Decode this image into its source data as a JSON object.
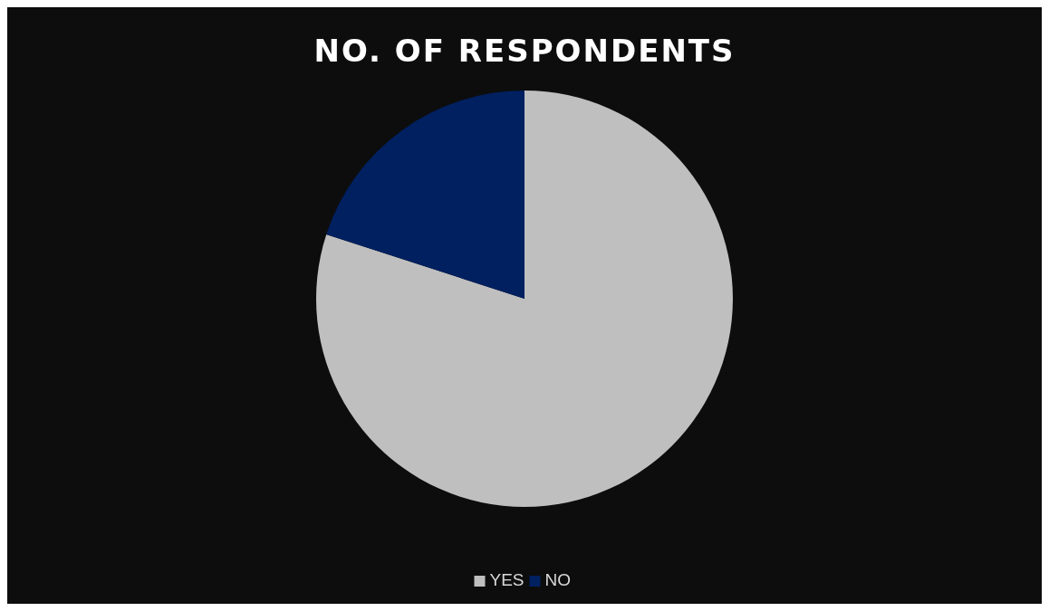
{
  "chart_data": {
    "type": "pie",
    "title": "NO. OF RESPONDENTS",
    "categories": [
      "YES",
      "NO"
    ],
    "values": [
      80,
      20
    ],
    "colors": [
      "#bfbfbf",
      "#002060"
    ],
    "legend": "bottom"
  }
}
